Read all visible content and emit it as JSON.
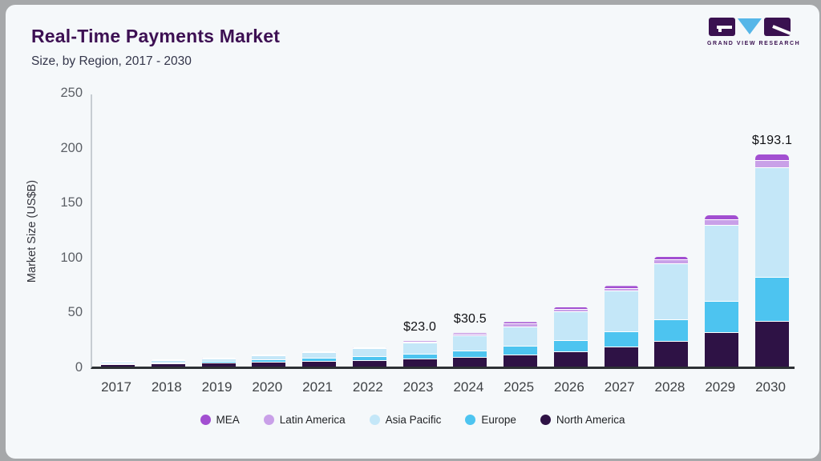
{
  "header": {
    "title": "Real-Time Payments Market",
    "subtitle": "Size, by Region, 2017 - 2030"
  },
  "logo": {
    "caption": "GRAND VIEW RESEARCH",
    "square_color": "#3a1150",
    "triangle_color": "#56b6e8"
  },
  "colors": {
    "card_background": "#f5f8fa",
    "frame_background": "#a6a8aa",
    "title_text": "#3d1053",
    "x_axis_line": "#2c3034",
    "y_axis_line": "#c6ccd2"
  },
  "chart_data": {
    "type": "bar",
    "stacked": true,
    "title": "Real-Time Payments Market",
    "subtitle": "Size, by Region, 2017 - 2030",
    "xlabel": "",
    "ylabel": "Market Size (US$B)",
    "ylim": [
      0,
      250
    ],
    "yticks": [
      0,
      50,
      100,
      150,
      200,
      250
    ],
    "grid": false,
    "categories": [
      "2017",
      "2018",
      "2019",
      "2020",
      "2021",
      "2022",
      "2023",
      "2024",
      "2025",
      "2026",
      "2027",
      "2028",
      "2029",
      "2030"
    ],
    "series": [
      {
        "name": "North America",
        "color": "#2e1245",
        "values": [
          1.6,
          2.1,
          2.7,
          3.5,
          4.4,
          5.4,
          6.5,
          8.3,
          10.5,
          13.3,
          17.3,
          22.3,
          30.5,
          41.0
        ]
      },
      {
        "name": "Europe",
        "color": "#4dc4f0",
        "values": [
          0.8,
          1.1,
          1.5,
          2.0,
          2.8,
          3.6,
          4.3,
          5.8,
          7.6,
          10.2,
          14.2,
          19.7,
          28.5,
          40.2
        ]
      },
      {
        "name": "Asia Pacific",
        "color": "#c4e7f8",
        "values": [
          1.3,
          1.8,
          2.6,
          3.7,
          5.3,
          7.4,
          10.0,
          13.8,
          18.0,
          26.3,
          37.0,
          51.5,
          69.5,
          99.4
        ]
      },
      {
        "name": "Latin America",
        "color": "#c9a0e8",
        "values": [
          0.2,
          0.25,
          0.3,
          0.4,
          0.5,
          0.6,
          1.0,
          1.2,
          2.2,
          2.1,
          2.5,
          3.2,
          4.8,
          6.5
        ]
      },
      {
        "name": "MEA",
        "color": "#a24fd1",
        "values": [
          0.2,
          0.25,
          0.3,
          0.4,
          0.5,
          0.6,
          1.2,
          1.4,
          2.2,
          2.1,
          2.5,
          3.3,
          4.7,
          6.0
        ]
      }
    ],
    "totals": [
      4.1,
      5.5,
      7.4,
      10.0,
      13.5,
      17.6,
      23.0,
      30.5,
      40.5,
      54.0,
      73.5,
      100.0,
      138.0,
      193.1
    ],
    "value_labels": [
      {
        "category": "2023",
        "label": "$23.0"
      },
      {
        "category": "2024",
        "label": "$30.5"
      },
      {
        "category": "2030",
        "label": "$193.1"
      }
    ],
    "legend": {
      "position": "bottom",
      "items": [
        {
          "label": "MEA",
          "color": "#a24fd1"
        },
        {
          "label": "Latin America",
          "color": "#c9a0e8"
        },
        {
          "label": "Asia Pacific",
          "color": "#c4e7f8"
        },
        {
          "label": "Europe",
          "color": "#4dc4f0"
        },
        {
          "label": "North America",
          "color": "#2e1245"
        }
      ]
    }
  }
}
